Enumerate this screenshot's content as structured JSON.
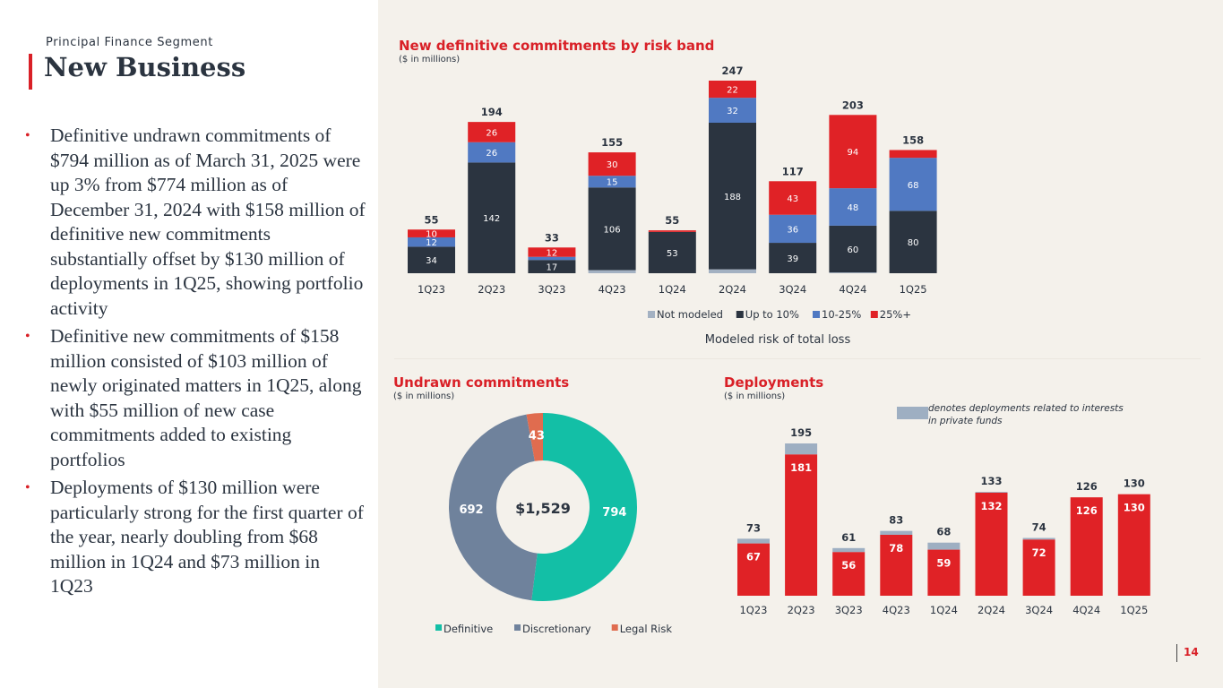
{
  "header": {
    "segment": "Principal Finance Segment",
    "title": "New Business"
  },
  "bullets": [
    "Definitive undrawn commitments of $794 million as of March 31, 2025 were up 3% from $774 million as of December 31, 2024 with $158 million of definitive new commitments substantially offset by $130 million of deployments in 1Q25, showing portfolio activity",
    "Definitive new commitments of $158 million consisted of $103 million of newly originated matters in 1Q25, along with $55 million of new case commitments added to existing portfolios",
    "Deployments of $130 million were particularly strong for the first quarter of the year, nearly doubling from $68 million in 1Q24 and $73 million in 1Q23"
  ],
  "footer": {
    "page_number": "14"
  },
  "colors": {
    "accent_red": "#d92027",
    "not_modeled": "#a3b1c2",
    "up_to_10": "#2b3440",
    "band_10_25": "#5079c2",
    "band_25_plus": "#e02226",
    "definitive": "#13bfa6",
    "discretionary": "#6f829c",
    "legal_risk": "#e06c4f",
    "private_funds": "#9eafc2"
  },
  "chart_data": [
    {
      "type": "bar",
      "stacked": true,
      "title": "New definitive commitments by risk band",
      "subtitle": "($ in millions)",
      "xlabel": "Modeled risk of total loss",
      "ylabel": "",
      "categories": [
        "1Q23",
        "2Q23",
        "3Q23",
        "4Q23",
        "1Q24",
        "2Q24",
        "3Q24",
        "4Q24",
        "1Q25"
      ],
      "totals": [
        55,
        194,
        33,
        155,
        55,
        247,
        117,
        203,
        158
      ],
      "series": [
        {
          "name": "Not modeled",
          "values": [
            0,
            0,
            0,
            4,
            0,
            5,
            0,
            1,
            0
          ],
          "labels": [
            "",
            "",
            "",
            "",
            "",
            "",
            "",
            "",
            ""
          ]
        },
        {
          "name": "Up to 10%",
          "values": [
            34,
            142,
            17,
            106,
            53,
            188,
            39,
            60,
            80
          ],
          "labels": [
            "34",
            "142",
            "17",
            "106",
            "53",
            "188",
            "39",
            "60",
            "80"
          ]
        },
        {
          "name": "10-25%",
          "values": [
            12,
            26,
            4,
            15,
            0,
            32,
            36,
            48,
            68
          ],
          "labels": [
            "12",
            "26",
            "",
            "15",
            "",
            "32",
            "36",
            "48",
            "68"
          ]
        },
        {
          "name": "25%+",
          "values": [
            10,
            26,
            12,
            30,
            2,
            22,
            43,
            94,
            10
          ],
          "labels": [
            "10",
            "26",
            "12",
            "30",
            "",
            "22",
            "43",
            "94",
            ""
          ]
        }
      ],
      "legend": "bottom",
      "grid": false
    },
    {
      "type": "pie",
      "donut": true,
      "title": "Undrawn commitments",
      "subtitle": "($ in millions)",
      "center_label": "$1,529",
      "slices": [
        {
          "name": "Definitive",
          "value": 794,
          "label": "794"
        },
        {
          "name": "Discretionary",
          "value": 692,
          "label": "692"
        },
        {
          "name": "Legal Risk",
          "value": 43,
          "label": "43"
        }
      ],
      "legend": "bottom"
    },
    {
      "type": "bar",
      "stacked": true,
      "title": "Deployments",
      "subtitle": "($ in millions)",
      "note": "denotes deployments related to interests in private funds",
      "categories": [
        "1Q23",
        "2Q23",
        "3Q23",
        "4Q23",
        "1Q24",
        "2Q24",
        "3Q24",
        "4Q24",
        "1Q25"
      ],
      "totals": [
        73,
        195,
        61,
        83,
        68,
        133,
        74,
        126,
        130
      ],
      "series": [
        {
          "name": "Deployments",
          "values": [
            67,
            181,
            56,
            78,
            59,
            132,
            72,
            126,
            130
          ]
        },
        {
          "name": "Interests in private funds",
          "values": [
            6,
            14,
            5,
            5,
            9,
            1,
            2,
            0,
            0
          ]
        }
      ],
      "legend": "top-right",
      "grid": false
    }
  ]
}
